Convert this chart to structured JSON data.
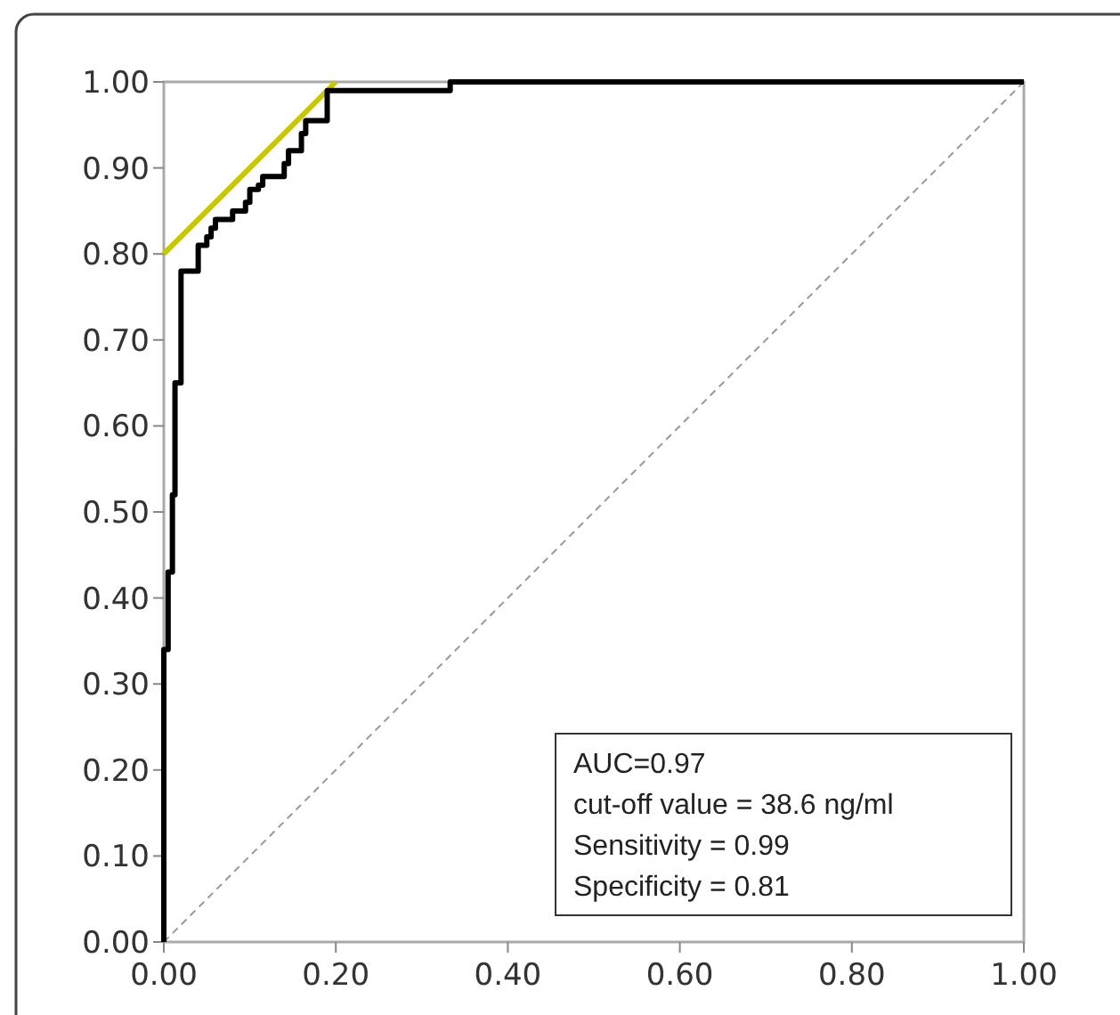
{
  "chart_data": {
    "type": "line",
    "xlim": [
      0,
      1
    ],
    "ylim": [
      0,
      1
    ],
    "xticks": [
      {
        "value": 0,
        "label": "0.00"
      },
      {
        "value": 0.2,
        "label": "0.20"
      },
      {
        "value": 0.4,
        "label": "0.40"
      },
      {
        "value": 0.6,
        "label": "0.60"
      },
      {
        "value": 0.8,
        "label": "0.80"
      },
      {
        "value": 1,
        "label": "1.00"
      }
    ],
    "yticks": [
      {
        "value": 0,
        "label": "0.00"
      },
      {
        "value": 0.1,
        "label": "0.10"
      },
      {
        "value": 0.2,
        "label": "0.20"
      },
      {
        "value": 0.3,
        "label": "0.30"
      },
      {
        "value": 0.4,
        "label": "0.40"
      },
      {
        "value": 0.5,
        "label": "0.50"
      },
      {
        "value": 0.6,
        "label": "0.60"
      },
      {
        "value": 0.7,
        "label": "0.70"
      },
      {
        "value": 0.8,
        "label": "0.80"
      },
      {
        "value": 0.9,
        "label": "0.90"
      },
      {
        "value": 1,
        "label": "1.00"
      }
    ],
    "grid": false,
    "series": [
      {
        "type": "step",
        "color": "#000000",
        "line_style": "solid",
        "x": [
          0,
          0,
          0.005,
          0.01,
          0.013,
          0.02,
          0.04,
          0.05,
          0.055,
          0.06,
          0.08,
          0.095,
          0.1,
          0.11,
          0.115,
          0.14,
          0.145,
          0.16,
          0.165,
          0.19,
          0.333,
          1
        ],
        "values": [
          0,
          0.34,
          0.43,
          0.52,
          0.65,
          0.78,
          0.81,
          0.82,
          0.83,
          0.84,
          0.85,
          0.86,
          0.875,
          0.88,
          0.89,
          0.905,
          0.92,
          0.94,
          0.955,
          0.99,
          1,
          1
        ]
      },
      {
        "color": "#c8c800",
        "line_style": "solid",
        "x": [
          0,
          0.2
        ],
        "values": [
          0.8,
          1
        ]
      },
      {
        "color": "#999999",
        "line_style": "dashed",
        "x": [
          0,
          1
        ],
        "values": [
          0,
          1
        ]
      }
    ],
    "annotations": [
      "AUC=0.97",
      "cut-off value = 38.6 ng/ml",
      "Sensitivity = 0.99",
      "Specificity = 0.81"
    ]
  }
}
